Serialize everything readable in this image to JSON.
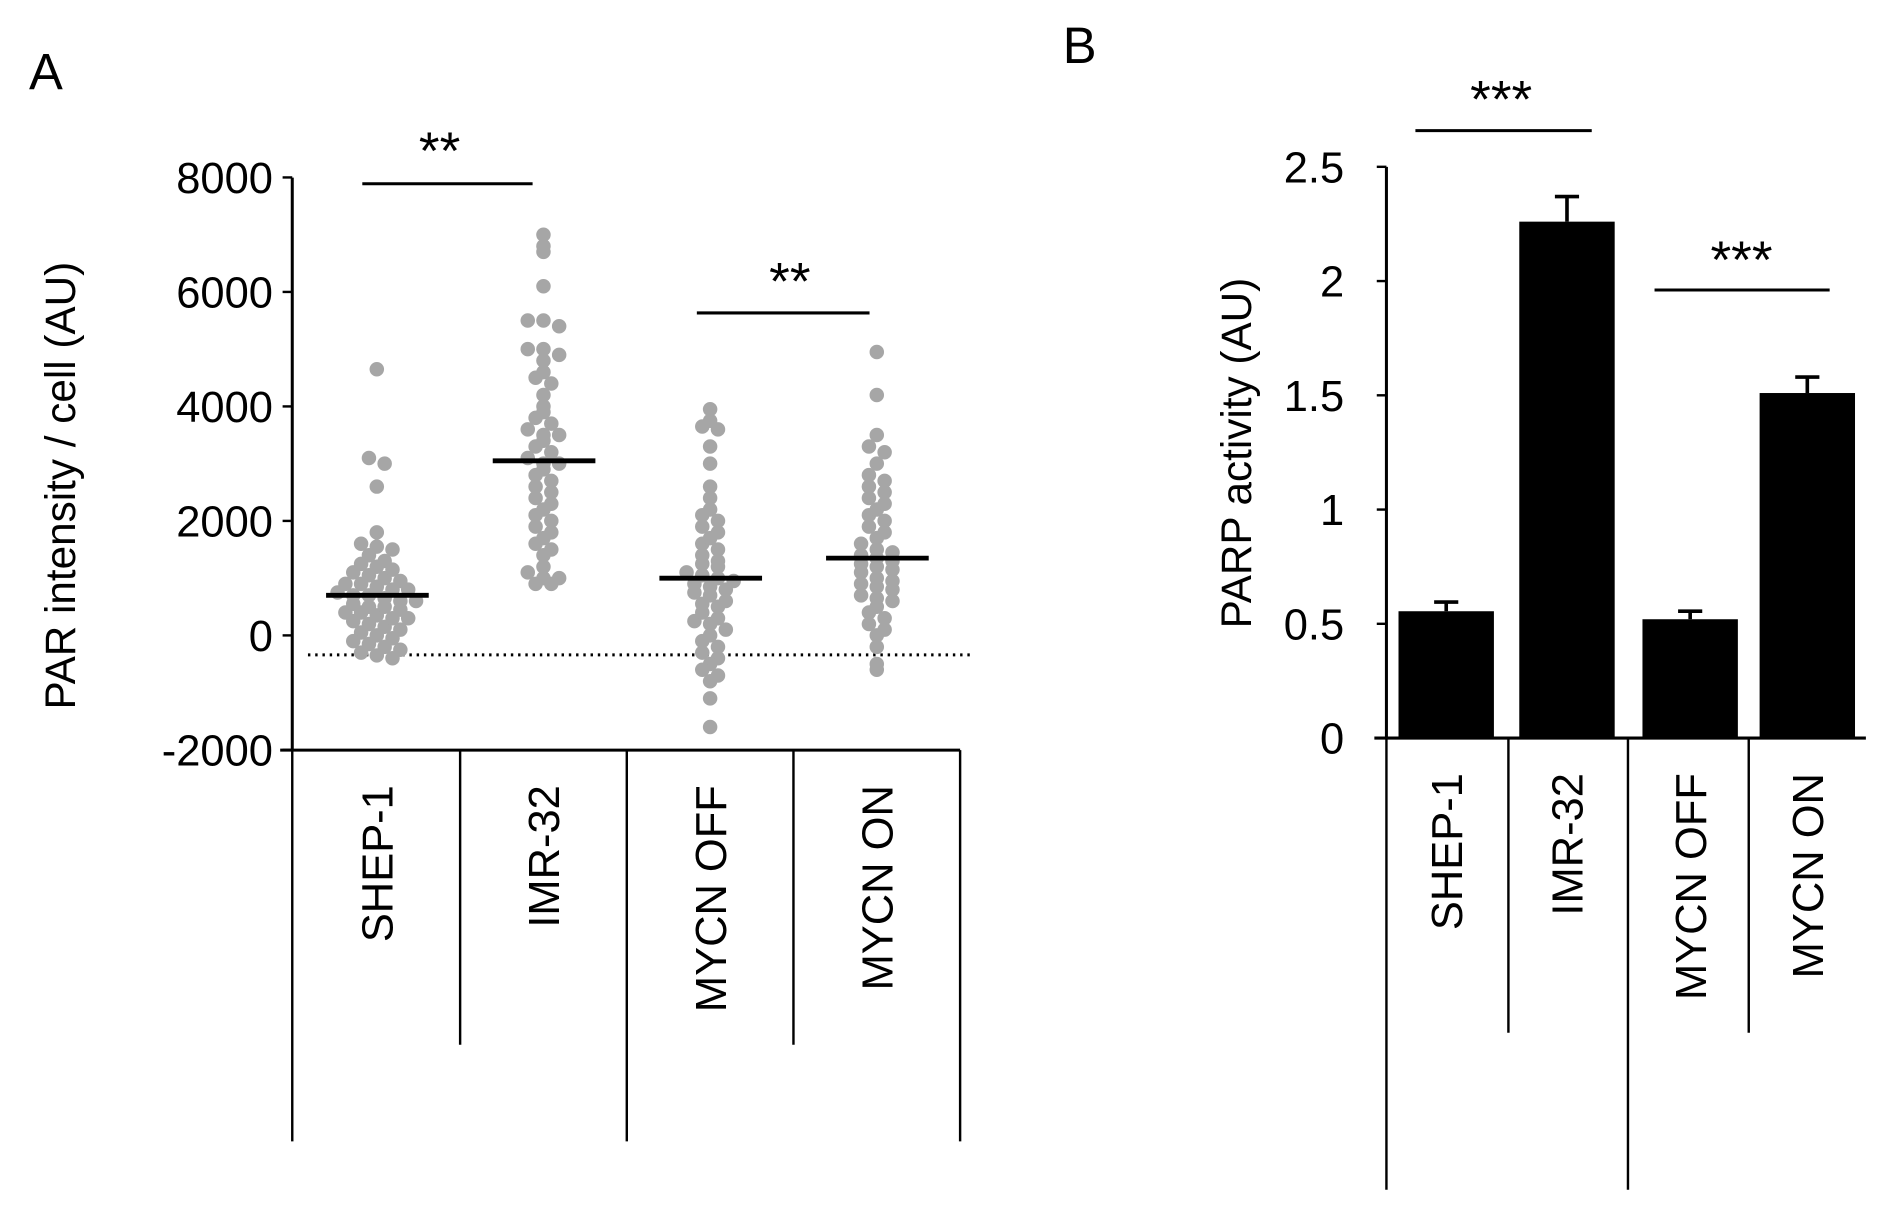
{
  "chart_data": [
    {
      "panel": "A",
      "type": "scatter",
      "ylabel": "PAR intensity / cell (AU)",
      "ylim": [
        -2000,
        8000
      ],
      "yticks": [
        "8000",
        "6000",
        "4000",
        "2000",
        "0",
        "-2000"
      ],
      "categories": [
        "SHEP-1",
        "IMR-32",
        "MYCN OFF",
        "MYCN ON"
      ],
      "point_color": "#a6a6a6",
      "reference_line": -340,
      "series": [
        {
          "category": "SHEP-1",
          "mean": 700,
          "values": [
            4650,
            3100,
            3000,
            2600,
            1800,
            1600,
            1550,
            1500,
            1400,
            1300,
            1250,
            1200,
            1150,
            1100,
            1050,
            1000,
            950,
            900,
            900,
            850,
            800,
            800,
            750,
            700,
            700,
            650,
            600,
            600,
            550,
            500,
            500,
            450,
            400,
            400,
            350,
            300,
            300,
            250,
            200,
            150,
            100,
            50,
            0,
            -50,
            -100,
            -150,
            -200,
            -250,
            -300,
            -350,
            -400
          ]
        },
        {
          "category": "IMR-32",
          "mean": 3050,
          "values": [
            7000,
            6800,
            6700,
            6100,
            5500,
            5500,
            5400,
            5000,
            5000,
            4900,
            4800,
            4600,
            4500,
            4400,
            4200,
            4000,
            3900,
            3800,
            3700,
            3600,
            3500,
            3500,
            3400,
            3300,
            3200,
            3100,
            3000,
            3000,
            2900,
            2800,
            2700,
            2600,
            2500,
            2400,
            2300,
            2200,
            2100,
            2000,
            1900,
            1800,
            1700,
            1600,
            1500,
            1400,
            1200,
            1100,
            1000,
            900,
            900,
            1000
          ]
        },
        {
          "category": "MYCN OFF",
          "mean": 1000,
          "values": [
            3950,
            3750,
            3650,
            3600,
            3300,
            3000,
            2600,
            2400,
            2200,
            2100,
            2000,
            1900,
            1800,
            1700,
            1600,
            1500,
            1400,
            1300,
            1250,
            1200,
            1100,
            1050,
            1000,
            950,
            900,
            850,
            800,
            750,
            700,
            600,
            550,
            500,
            400,
            300,
            250,
            200,
            100,
            0,
            -100,
            -200,
            -300,
            -400,
            -500,
            -600,
            -700,
            -800,
            -1100,
            -1600
          ]
        },
        {
          "category": "MYCN ON",
          "mean": 1350,
          "values": [
            4950,
            4200,
            3500,
            3300,
            3200,
            3000,
            2800,
            2700,
            2600,
            2500,
            2400,
            2300,
            2200,
            2100,
            2000,
            1900,
            1800,
            1700,
            1600,
            1500,
            1450,
            1400,
            1350,
            1300,
            1250,
            1200,
            1150,
            1100,
            1000,
            950,
            900,
            850,
            800,
            700,
            650,
            600,
            500,
            400,
            300,
            200,
            100,
            0,
            -200,
            -500,
            -600
          ]
        }
      ],
      "significance": [
        {
          "between": [
            "SHEP-1",
            "IMR-32"
          ],
          "label": "**"
        },
        {
          "between": [
            "MYCN OFF",
            "MYCN ON"
          ],
          "label": "**"
        }
      ]
    },
    {
      "panel": "B",
      "type": "bar",
      "ylabel": "PARP activity (AU)",
      "ylim": [
        0,
        2.5
      ],
      "yticks": [
        "2.5",
        "2",
        "1.5",
        "1",
        "0.5",
        "0"
      ],
      "categories": [
        "SHEP-1",
        "IMR-32",
        "MYCN OFF",
        "MYCN ON"
      ],
      "values": [
        0.555,
        2.26,
        0.52,
        1.51
      ],
      "errors": [
        0.04,
        0.11,
        0.035,
        0.07
      ],
      "bar_color": "#000000",
      "significance": [
        {
          "between": [
            "SHEP-1",
            "IMR-32"
          ],
          "label": "***"
        },
        {
          "between": [
            "MYCN OFF",
            "MYCN ON"
          ],
          "label": "***"
        }
      ]
    }
  ]
}
